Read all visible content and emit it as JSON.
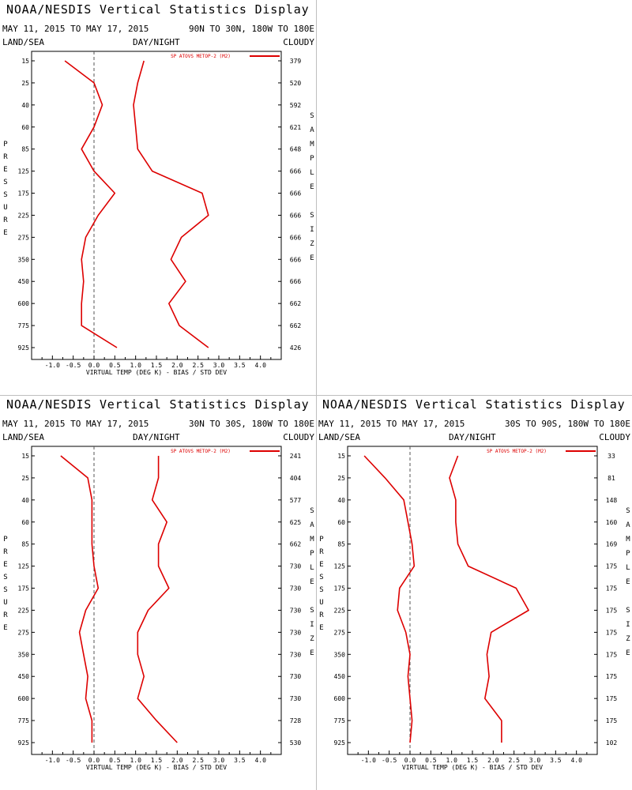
{
  "display": {
    "title": "NOAA/NESDIS Vertical Statistics Display",
    "date_range": "MAY 11, 2015 TO MAY 17, 2015",
    "land_sea_label": "LAND/SEA",
    "day_night_label": "DAY/NIGHT",
    "cloudy_label": "CLOUDY",
    "xlabel": "VIRTUAL TEMP (DEG K) - BIAS / STD DEV",
    "ylabel": "PRESSURE",
    "right_label": "SAMPLE SIZE",
    "legend": "SP ATOVS METOP-2 (M2)",
    "line_color": "#dd0000"
  },
  "chart_data": [
    {
      "type": "line",
      "region": "90N TO 30N, 180W TO 180E",
      "pressure": [
        15,
        25,
        40,
        60,
        85,
        125,
        175,
        225,
        275,
        350,
        450,
        600,
        775,
        925
      ],
      "xlim": [
        -1.5,
        4.5
      ],
      "xticks": [
        -1.0,
        -0.5,
        0.0,
        0.5,
        1.0,
        1.5,
        2.0,
        2.5,
        3.0,
        3.5,
        4.0
      ],
      "series": [
        {
          "name": "SP ATOVS METOP-2 (M2)",
          "kind": "bias",
          "values": [
            -0.7,
            0.0,
            0.2,
            0.0,
            -0.3,
            0.0,
            0.5,
            0.1,
            -0.2,
            -0.3,
            -0.25,
            -0.3,
            -0.3,
            0.55
          ]
        },
        {
          "name": "SP ATOVS METOP-2 (M2)",
          "kind": "std_dev",
          "values": [
            1.2,
            1.05,
            0.95,
            1.0,
            1.05,
            1.4,
            2.6,
            2.75,
            2.1,
            1.85,
            2.2,
            1.8,
            2.05,
            2.75
          ]
        }
      ],
      "sample_size": [
        379,
        520,
        592,
        621,
        648,
        666,
        666,
        666,
        666,
        666,
        666,
        662,
        662,
        426
      ]
    },
    {
      "type": "line",
      "region": "30N TO 30S, 180W TO 180E",
      "pressure": [
        15,
        25,
        40,
        60,
        85,
        125,
        175,
        225,
        275,
        350,
        450,
        600,
        775,
        925
      ],
      "xlim": [
        -1.5,
        4.5
      ],
      "xticks": [
        -1.0,
        -0.5,
        0.0,
        0.5,
        1.0,
        1.5,
        2.0,
        2.5,
        3.0,
        3.5,
        4.0
      ],
      "series": [
        {
          "name": "SP ATOVS METOP-2 (M2)",
          "kind": "bias",
          "values": [
            -0.8,
            -0.15,
            -0.05,
            -0.05,
            -0.05,
            0.0,
            0.1,
            -0.2,
            -0.35,
            -0.25,
            -0.15,
            -0.2,
            -0.05,
            -0.05
          ]
        },
        {
          "name": "SP ATOVS METOP-2 (M2)",
          "kind": "std_dev",
          "values": [
            1.55,
            1.55,
            1.4,
            1.75,
            1.55,
            1.55,
            1.8,
            1.3,
            1.05,
            1.05,
            1.2,
            1.05,
            1.5,
            2.0
          ]
        }
      ],
      "sample_size": [
        241,
        404,
        577,
        625,
        662,
        730,
        730,
        730,
        730,
        730,
        730,
        730,
        728,
        530
      ]
    },
    {
      "type": "line",
      "region": "30S TO 90S, 180W TO 180E",
      "pressure": [
        15,
        25,
        40,
        60,
        85,
        125,
        175,
        225,
        275,
        350,
        450,
        600,
        775,
        925
      ],
      "xlim": [
        -1.5,
        4.5
      ],
      "xticks": [
        -1.0,
        -0.5,
        0.0,
        0.5,
        1.0,
        1.5,
        2.0,
        2.5,
        3.0,
        3.5,
        4.0
      ],
      "series": [
        {
          "name": "SP ATOVS METOP-2 (M2)",
          "kind": "bias",
          "values": [
            -1.1,
            -0.6,
            -0.15,
            -0.05,
            0.05,
            0.1,
            -0.25,
            -0.3,
            -0.1,
            0.0,
            -0.05,
            0.0,
            0.05,
            0.0
          ]
        },
        {
          "name": "SP ATOVS METOP-2 (M2)",
          "kind": "std_dev",
          "values": [
            1.15,
            0.95,
            1.1,
            1.1,
            1.15,
            1.4,
            2.55,
            2.85,
            1.95,
            1.85,
            1.9,
            1.8,
            2.2,
            2.2
          ]
        }
      ],
      "sample_size": [
        33,
        81,
        148,
        160,
        169,
        175,
        175,
        175,
        175,
        175,
        175,
        175,
        175,
        102
      ]
    }
  ]
}
